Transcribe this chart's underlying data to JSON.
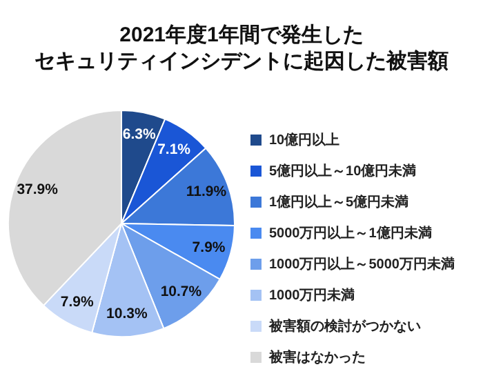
{
  "chart_data": {
    "type": "pie",
    "title": "2021年度1年間で発生した",
    "subtitle": "セキュリティインシデントに起因した被害額",
    "categories": [
      "10億円以上",
      "5億円以上～10億円未満",
      "1億円以上～5億円未満",
      "5000万円以上～1億円未満",
      "1000万円以上～5000万円未満",
      "1000万円未満",
      "被害額の検討がつかない",
      "被害はなかった"
    ],
    "values": [
      6.3,
      7.1,
      11.9,
      7.9,
      10.7,
      10.3,
      7.9,
      37.9
    ],
    "value_labels": [
      "6.3%",
      "7.1%",
      "11.9%",
      "7.9%",
      "10.7%",
      "10.3%",
      "7.9%",
      "37.9%"
    ],
    "colors": [
      "#1f4a8c",
      "#1a56d6",
      "#3c78d8",
      "#4a8af0",
      "#6d9eeb",
      "#a4c2f4",
      "#c9daf8",
      "#d9d9d9"
    ],
    "legend": "right"
  }
}
